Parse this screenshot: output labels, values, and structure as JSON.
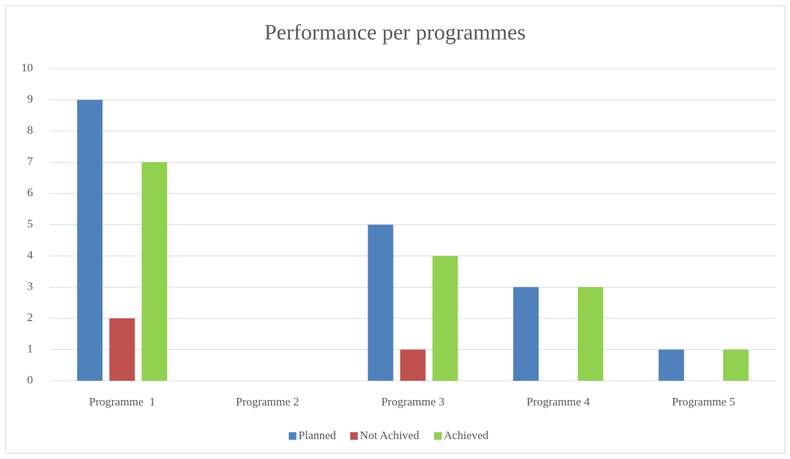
{
  "chart_data": {
    "type": "bar",
    "title": "Performance per programmes",
    "categories": [
      "Programme  1",
      "Programme 2",
      "Programme 3",
      "Programme 4",
      "Programme 5"
    ],
    "series": [
      {
        "name": "Planned",
        "color": "#4f81bd",
        "values": [
          9,
          0,
          5,
          3,
          1
        ]
      },
      {
        "name": "Not Achived",
        "color": "#c0504d",
        "values": [
          2,
          0,
          1,
          0,
          0
        ]
      },
      {
        "name": "Achieved",
        "color": "#92d050",
        "values": [
          7,
          0,
          4,
          3,
          1
        ]
      }
    ],
    "ylim": [
      0,
      10
    ],
    "yticks": [
      0,
      1,
      2,
      3,
      4,
      5,
      6,
      7,
      8,
      9,
      10
    ],
    "grid": true,
    "legend": "bottom"
  }
}
